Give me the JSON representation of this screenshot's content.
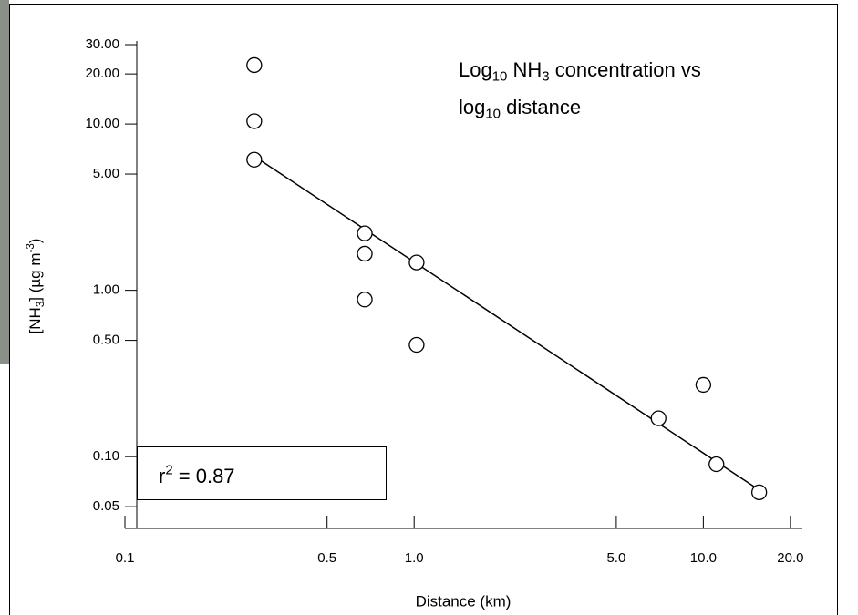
{
  "chart_data": {
    "type": "scatter",
    "title": [
      "Log10 NH3 concentration vs",
      "log10 distance"
    ],
    "x_label": "Distance (km)",
    "y_label": "[NH3] (µg m-3)",
    "annotation": "r2 = 0.87",
    "x": [
      0.28,
      0.28,
      0.28,
      0.675,
      0.675,
      0.675,
      1.02,
      1.02,
      7.0,
      10.0,
      11.1,
      15.6
    ],
    "values": [
      22.6,
      10.4,
      6.1,
      2.2,
      1.66,
      0.88,
      1.47,
      0.47,
      0.17,
      0.27,
      0.09,
      0.061
    ],
    "trendline": {
      "x": [
        0.28,
        15.6
      ],
      "y": [
        6.4,
        0.063
      ]
    },
    "log_x": true,
    "log_y": true,
    "xlim": [
      0.1,
      22
    ],
    "ylim": [
      0.037,
      30
    ],
    "xticks": [
      0.1,
      0.5,
      {
        "value": 1,
        "label": "1.0"
      },
      {
        "value": 5,
        "label": "5.0"
      },
      {
        "value": 10,
        "label": "10.0"
      },
      {
        "value": 20,
        "label": "20.0"
      }
    ],
    "yticks": [
      {
        "value": 0.05,
        "label": "0.05"
      },
      {
        "value": 0.1,
        "label": "0.10"
      },
      {
        "value": 0.5,
        "label": "0.50"
      },
      {
        "value": 1,
        "label": "1.00"
      },
      {
        "value": 5,
        "label": "5.00"
      },
      {
        "value": 10,
        "label": "10.00"
      },
      {
        "value": 20,
        "label": "20.00"
      },
      {
        "value": 30,
        "label": "30.00"
      }
    ],
    "color": "#000000"
  }
}
